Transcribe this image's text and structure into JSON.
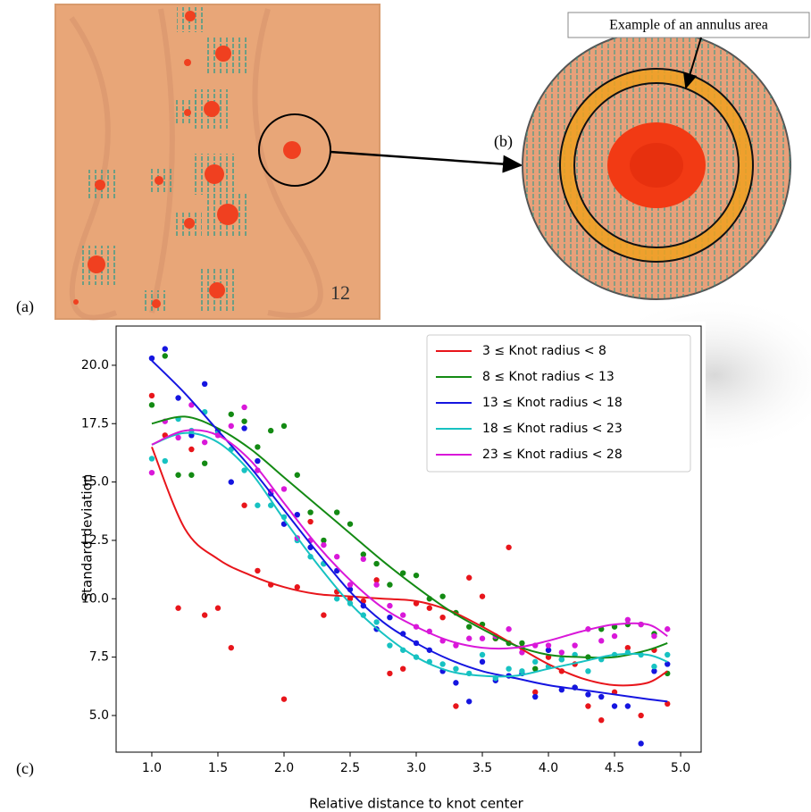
{
  "panels": {
    "a": "(a)",
    "b": "(b)",
    "c": "(c)",
    "annotation": "Example of an annulus area"
  },
  "chart_data": {
    "type": "scatter",
    "xlabel": "Relative distance to knot center",
    "ylabel": "Standard deviation",
    "x": [
      1.0,
      1.1,
      1.2,
      1.3,
      1.4,
      1.5,
      1.6,
      1.7,
      1.8,
      1.9,
      2.0,
      2.1,
      2.2,
      2.3,
      2.4,
      2.5,
      2.6,
      2.7,
      2.8,
      2.9,
      3.0,
      3.1,
      3.2,
      3.3,
      3.4,
      3.5,
      3.6,
      3.7,
      3.8,
      3.9,
      4.0,
      4.1,
      4.2,
      4.3,
      4.4,
      4.5,
      4.6,
      4.7,
      4.8,
      4.9
    ],
    "fit_x": [
      1.0,
      1.25,
      1.5,
      1.75,
      2.0,
      2.25,
      2.5,
      2.75,
      3.0,
      3.25,
      3.5,
      3.75,
      4.0,
      4.25,
      4.5,
      4.75,
      4.9
    ],
    "series": [
      {
        "name": "3 ≤ Knot radius < 8",
        "color": "#e8151b",
        "values": [
          18.7,
          17.0,
          9.6,
          16.4,
          9.3,
          9.6,
          7.9,
          14.0,
          11.2,
          10.6,
          5.7,
          10.5,
          13.3,
          9.3,
          10.3,
          10.0,
          9.9,
          10.8,
          6.8,
          7.0,
          9.8,
          9.6,
          9.2,
          5.4,
          10.9,
          10.1,
          8.3,
          12.2,
          7.9,
          6.0,
          7.5,
          6.9,
          7.2,
          5.4,
          4.8,
          6.0,
          7.9,
          5.0,
          7.8,
          5.5
        ],
        "fit": [
          16.5,
          13.0,
          11.7,
          11.0,
          10.5,
          10.2,
          10.1,
          10.0,
          9.9,
          9.5,
          8.8,
          8.0,
          7.2,
          6.6,
          6.3,
          6.4,
          6.9
        ]
      },
      {
        "name": "8 ≤ Knot radius < 13",
        "color": "#138a13",
        "values": [
          18.3,
          20.4,
          15.3,
          15.3,
          15.8,
          17.2,
          17.9,
          17.6,
          16.5,
          17.2,
          17.4,
          15.3,
          13.7,
          12.5,
          13.7,
          13.2,
          11.9,
          11.5,
          10.6,
          11.1,
          11.0,
          10.0,
          10.1,
          9.4,
          8.8,
          8.9,
          8.3,
          8.1,
          8.1,
          7.0,
          7.8,
          7.4,
          6.2,
          7.5,
          8.7,
          8.8,
          8.9,
          8.9,
          8.5,
          6.8
        ],
        "fit": [
          17.5,
          17.8,
          17.3,
          16.4,
          15.2,
          14.0,
          12.8,
          11.6,
          10.5,
          9.5,
          8.7,
          8.0,
          7.6,
          7.5,
          7.5,
          7.8,
          8.1
        ]
      },
      {
        "name": "13 ≤ Knot radius < 18",
        "color": "#1515e0",
        "values": [
          20.3,
          20.7,
          18.6,
          17.0,
          19.2,
          17.2,
          15.0,
          17.3,
          15.9,
          14.5,
          13.2,
          13.6,
          12.2,
          11.5,
          11.2,
          10.4,
          9.7,
          8.7,
          9.2,
          8.5,
          8.1,
          7.8,
          6.9,
          6.4,
          5.6,
          7.3,
          6.5,
          6.7,
          6.8,
          5.8,
          7.8,
          6.1,
          6.2,
          5.9,
          5.8,
          5.4,
          5.4,
          3.8,
          6.9,
          7.2
        ],
        "fit": [
          20.2,
          18.8,
          17.2,
          15.6,
          13.8,
          12.0,
          10.3,
          9.0,
          8.1,
          7.4,
          6.9,
          6.6,
          6.3,
          6.1,
          5.9,
          5.7,
          5.6
        ]
      },
      {
        "name": "18 ≤ Knot radius < 23",
        "color": "#17c2c2",
        "values": [
          16.0,
          15.9,
          17.7,
          17.2,
          18.0,
          17.1,
          16.4,
          15.5,
          14.0,
          14.0,
          13.5,
          12.5,
          11.8,
          11.5,
          10.0,
          9.8,
          9.3,
          9.0,
          8.0,
          7.8,
          7.5,
          7.3,
          7.2,
          7.0,
          6.8,
          7.6,
          6.6,
          7.0,
          6.9,
          7.3,
          7.1,
          7.4,
          7.6,
          6.9,
          7.4,
          7.6,
          7.7,
          7.6,
          7.1,
          7.6
        ],
        "fit": [
          16.6,
          17.1,
          16.7,
          15.4,
          13.4,
          11.5,
          9.8,
          8.5,
          7.5,
          6.9,
          6.7,
          6.7,
          7.0,
          7.3,
          7.6,
          7.6,
          7.3
        ]
      },
      {
        "name": "23 ≤ Knot radius < 28",
        "color": "#d918d9",
        "values": [
          15.4,
          17.6,
          16.9,
          18.3,
          16.7,
          17.0,
          17.4,
          18.2,
          15.5,
          14.6,
          14.7,
          12.6,
          12.5,
          12.3,
          11.8,
          10.6,
          11.7,
          10.6,
          9.7,
          9.3,
          8.8,
          8.6,
          8.2,
          8.0,
          8.3,
          8.3,
          8.4,
          8.7,
          7.7,
          8.0,
          8.0,
          7.7,
          8.0,
          8.7,
          8.2,
          8.4,
          9.1,
          8.9,
          8.4,
          8.7
        ],
        "fit": [
          16.6,
          17.2,
          17.0,
          15.9,
          14.1,
          12.3,
          10.8,
          9.6,
          8.8,
          8.2,
          7.9,
          7.9,
          8.2,
          8.6,
          8.9,
          8.9,
          8.4
        ]
      }
    ],
    "xlim": [
      0.73,
      5.155
    ],
    "ylim": [
      3.43,
      21.68
    ],
    "xticks": [
      {
        "value": 1,
        "label": "1.0"
      },
      1.5,
      {
        "value": 2,
        "label": "2.0"
      },
      2.5,
      {
        "value": 3,
        "label": "3.0"
      },
      3.5,
      {
        "value": 4,
        "label": "4.0"
      },
      4.5,
      {
        "value": 5,
        "label": "5.0"
      }
    ],
    "yticks": [
      {
        "value": 5,
        "label": "5.0"
      },
      7.5,
      {
        "value": 10,
        "label": "10.0"
      },
      12.5,
      {
        "value": 15,
        "label": "15.0"
      },
      17.5,
      {
        "value": 20,
        "label": "20.0"
      }
    ],
    "legend": "upper right"
  }
}
